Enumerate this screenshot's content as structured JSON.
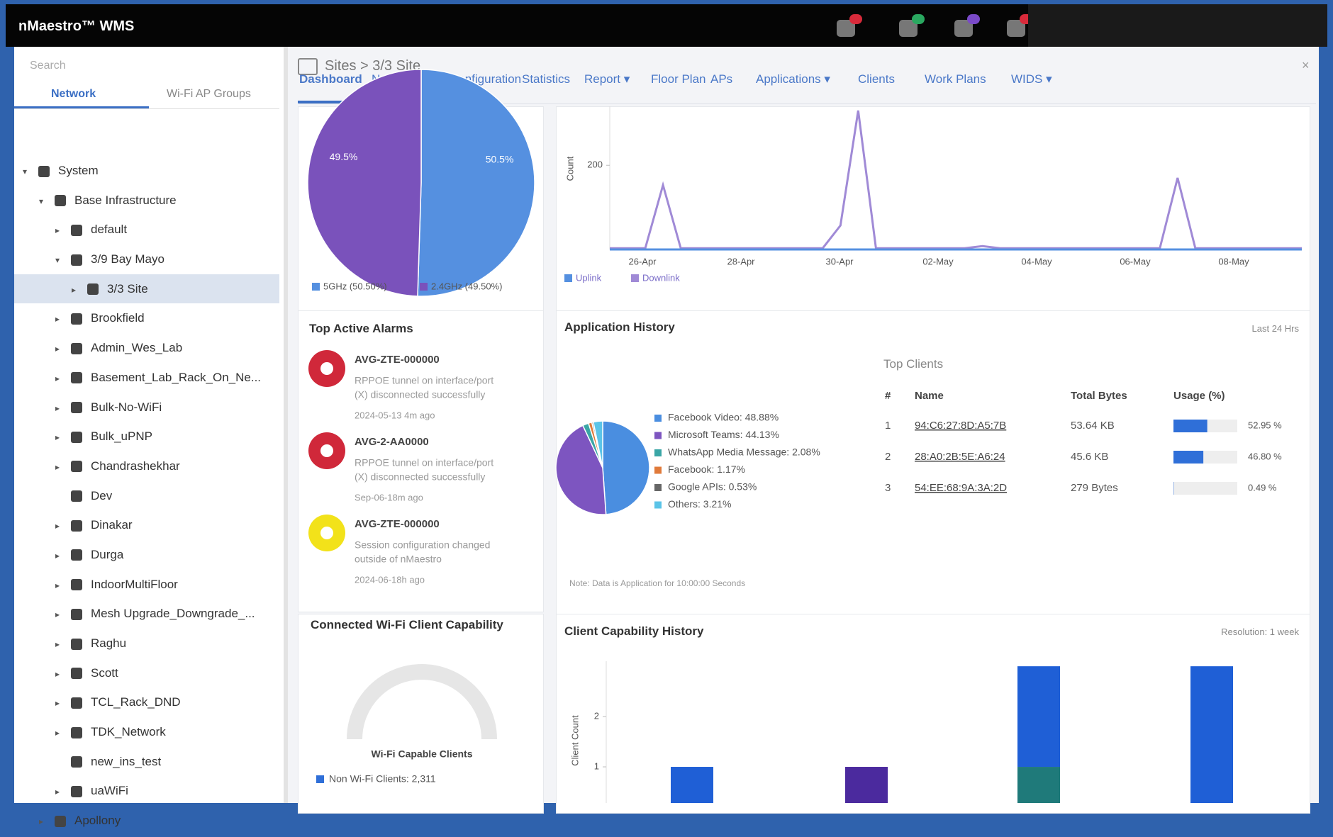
{
  "header": {
    "brand": "nMaestro™ WMS"
  },
  "sidebar": {
    "search": "Search",
    "tabs": [
      "Network",
      "Wi-Fi AP Groups"
    ],
    "tree": [
      "System",
      "Base Infrastructure",
      "default",
      "3/9 Bay Mayo",
      "3/3 Site",
      "Brookfield",
      "Admin_Wes_Lab",
      "Basement_Lab_Rack_On_Ne...",
      "Bulk-No-WiFi",
      "Bulk_uPNP",
      "Chandrashekhar",
      "Dev",
      "Dinakar",
      "Durga",
      "IndoorMultiFloor",
      "Mesh Upgrade_Downgrade_...",
      "Raghu",
      "Scott",
      "TCL_Rack_DND",
      "TDK_Network",
      "new_ins_test",
      "uaWiFi",
      "Apollony"
    ]
  },
  "main": {
    "breadcrumb": "Sites > 3/3 Site",
    "tabs": [
      "Dashboard",
      "Notifications",
      "Configuration",
      "Statistics",
      "Report ▾",
      "Floor Plan",
      "APs",
      "Applications ▾",
      "Clients",
      "Work Plans",
      "WIDS ▾"
    ]
  },
  "radio_pie": {
    "type": "pie",
    "categories": [
      "5GHz (50.50%)",
      "2.4GHz (49.50%)"
    ],
    "values": [
      50.5,
      49.5
    ],
    "value_labels": [
      "50.5%",
      "49.5%"
    ],
    "colors": [
      "#5590e0",
      "#7a52bb"
    ]
  },
  "traffic_chart": {
    "type": "line",
    "ylabel": "Count",
    "ylim": [
      0,
      330
    ],
    "yticks": [
      200
    ],
    "x_labels": [
      "26-Apr",
      "28-Apr",
      "30-Apr",
      "02-May",
      "04-May",
      "06-May",
      "08-May"
    ],
    "series": [
      {
        "name": "Uplink",
        "color": "#5590e0",
        "values": [
          0,
          0,
          0,
          0,
          0,
          0,
          0,
          0,
          0,
          0,
          0,
          0,
          0,
          0,
          0,
          0,
          0,
          0,
          0,
          0,
          0,
          0,
          0,
          0,
          0,
          0,
          0,
          0,
          0,
          0,
          0,
          0,
          0,
          0,
          0,
          0,
          0,
          0,
          0,
          0
        ]
      },
      {
        "name": "Downlink",
        "color": "#a08ad6",
        "values": [
          3,
          3,
          3,
          153,
          3,
          3,
          3,
          3,
          3,
          3,
          3,
          3,
          3,
          57,
          330,
          3,
          3,
          3,
          3,
          3,
          3,
          8,
          3,
          3,
          3,
          3,
          3,
          3,
          3,
          3,
          3,
          3,
          170,
          3,
          3,
          3,
          3,
          3,
          3,
          3
        ]
      }
    ]
  },
  "alarms": {
    "title": "Top Active Alarms",
    "items": [
      {
        "name": "AVG-ZTE-000000",
        "line1": "RPPOE tunnel on interface/port",
        "line2": "(X) disconnected successfully",
        "time": "2024-05-13 4m ago"
      },
      {
        "name": "AVG-2-AA0000",
        "line1": "RPPOE tunnel on interface/port",
        "line2": "(X) disconnected successfully",
        "time": "Sep-06-18m ago"
      },
      {
        "name": "AVG-ZTE-000000",
        "line1": "Session configuration changed",
        "line2": "outside of nMaestro",
        "time": "2024-06-18h ago"
      }
    ]
  },
  "application_history": {
    "title": "Application History",
    "range": "Last 24 Hrs",
    "note": "Note: Data is Application for 10:00:00 Seconds",
    "pie": {
      "type": "pie",
      "categories": [
        "Facebook Video",
        "Microsoft Teams",
        "WhatsApp Media Message",
        "Facebook",
        "Google APIs",
        "Others"
      ],
      "values": [
        48.88,
        44.13,
        2.08,
        1.17,
        0.53,
        3.21
      ],
      "value_labels": [
        "Facebook Video: 48.88%",
        "Microsoft Teams: 44.13%",
        "WhatsApp Media Message: 2.08%",
        "Facebook: 1.17%",
        "Google APIs: 0.53%",
        "Others: 3.21%"
      ],
      "colors": [
        "#4a8ee0",
        "#7d55c0",
        "#3aa6a6",
        "#e07a3a",
        "#666666",
        "#5bc4e8"
      ]
    }
  },
  "top_clients": {
    "title": "Top Clients",
    "columns": [
      "#",
      "Name",
      "Total Bytes",
      "Usage (%)"
    ],
    "rows": [
      {
        "rank": "1",
        "name": "94:C6:27:8D:A5:7B",
        "bytes": "53.64 KB",
        "usage": 52.95,
        "usage_label": "52.95 %"
      },
      {
        "rank": "2",
        "name": "28:A0:2B:5E:A6:24",
        "bytes": "45.6 KB",
        "usage": 46.8,
        "usage_label": "46.80 %"
      },
      {
        "rank": "3",
        "name": "54:EE:68:9A:3A:2D",
        "bytes": "279 Bytes",
        "usage": 0.49,
        "usage_label": "0.49 %"
      }
    ]
  },
  "capability_gauge": {
    "title": "Connected Wi-Fi Client Capability",
    "label": "Wi-Fi Capable Clients",
    "legend": "Non Wi-Fi Clients: 2,311"
  },
  "capability_history": {
    "type": "bar",
    "title": "Client Capability History",
    "resolution": "Resolution: 1 week",
    "ylabel": "Client Count",
    "ylim": [
      0,
      3.1
    ],
    "yticks": [
      1,
      2
    ],
    "categories": [
      null,
      null,
      null,
      null
    ],
    "series": [
      {
        "color": "#1f7a7a",
        "values": [
          0,
          0,
          1,
          0
        ]
      },
      {
        "color": "#1f5fd6",
        "values": [
          1,
          0,
          2,
          3
        ]
      },
      {
        "color": "#4b2a9e",
        "values": [
          0,
          1,
          0,
          0
        ]
      }
    ]
  }
}
